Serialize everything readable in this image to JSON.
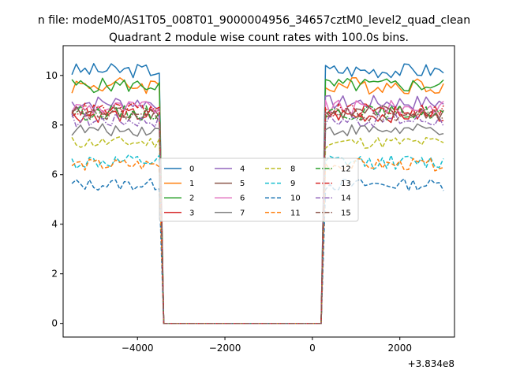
{
  "suptitle": "n file: modeM0/AS1T05_008T01_9000004956_34657cztM0_level2_quad_clean",
  "chart_data": {
    "type": "line",
    "title": "Quadrant 2 module wise count rates with 100.0s bins.",
    "xlabel": "",
    "ylabel": "",
    "xlim": [
      -5700,
      3250
    ],
    "ylim": [
      -0.55,
      11.2
    ],
    "x_offset_label": "+3.834e8",
    "xticks": [
      -4000,
      -2000,
      0,
      2000
    ],
    "xtick_labels": [
      "−4000",
      "−2000",
      "0",
      "2000"
    ],
    "yticks": [
      0,
      2,
      4,
      6,
      8,
      10
    ],
    "ytick_labels": [
      "0",
      "2",
      "4",
      "6",
      "8",
      "10"
    ],
    "grid": false,
    "legend_position": "center",
    "x_start": -5500,
    "x_end": 3000,
    "x_step": 100,
    "gap": [
      -3400,
      200
    ],
    "series": [
      {
        "name": "0",
        "color": "#1f77b4",
        "dash": "solid",
        "level": 10.2,
        "noise": 0.3
      },
      {
        "name": "1",
        "color": "#ff7f0e",
        "dash": "solid",
        "level": 9.6,
        "noise": 0.35
      },
      {
        "name": "2",
        "color": "#2ca02c",
        "dash": "solid",
        "level": 9.6,
        "noise": 0.3
      },
      {
        "name": "3",
        "color": "#d62728",
        "dash": "solid",
        "level": 8.4,
        "noise": 0.3
      },
      {
        "name": "4",
        "color": "#9467bd",
        "dash": "solid",
        "level": 8.9,
        "noise": 0.3
      },
      {
        "name": "5",
        "color": "#8c564b",
        "dash": "solid",
        "level": 8.5,
        "noise": 0.3
      },
      {
        "name": "6",
        "color": "#e377c2",
        "dash": "solid",
        "level": 8.7,
        "noise": 0.3
      },
      {
        "name": "7",
        "color": "#7f7f7f",
        "dash": "solid",
        "level": 7.8,
        "noise": 0.25
      },
      {
        "name": "8",
        "color": "#bcbd22",
        "dash": "dashed",
        "level": 7.3,
        "noise": 0.25
      },
      {
        "name": "9",
        "color": "#17becf",
        "dash": "dashed",
        "level": 6.5,
        "noise": 0.3
      },
      {
        "name": "10",
        "color": "#1f77b4",
        "dash": "dashed",
        "level": 5.6,
        "noise": 0.25
      },
      {
        "name": "11",
        "color": "#ff7f0e",
        "dash": "dashed",
        "level": 6.4,
        "noise": 0.25
      },
      {
        "name": "12",
        "color": "#2ca02c",
        "dash": "dashdot",
        "level": 8.5,
        "noise": 0.3
      },
      {
        "name": "13",
        "color": "#d62728",
        "dash": "dashdot",
        "level": 8.6,
        "noise": 0.3
      },
      {
        "name": "14",
        "color": "#9467bd",
        "dash": "dashdot",
        "level": 8.2,
        "noise": 0.3
      },
      {
        "name": "15",
        "color": "#8c564b",
        "dash": "dashdot",
        "level": 8.4,
        "noise": 0.3
      }
    ]
  }
}
